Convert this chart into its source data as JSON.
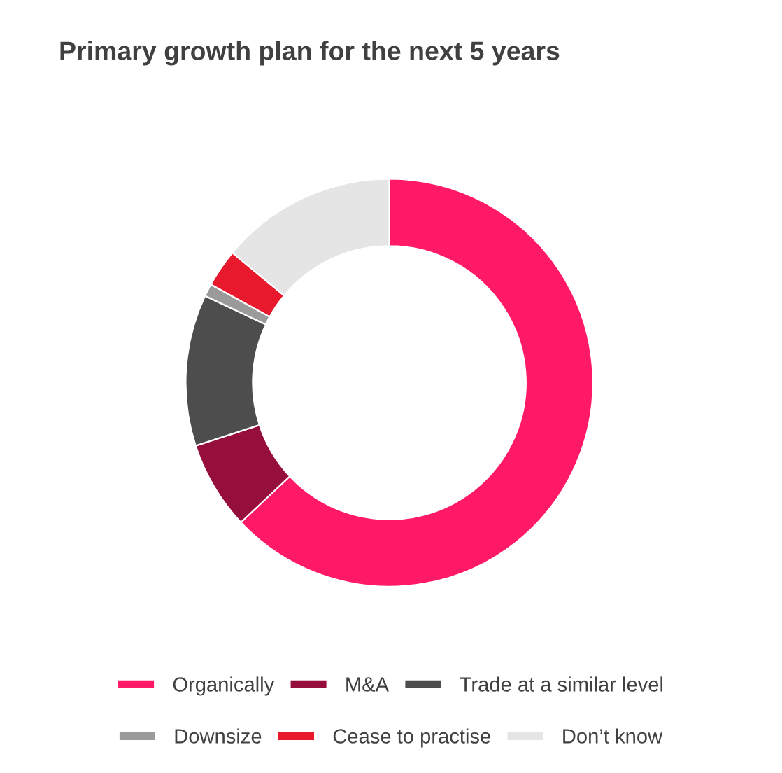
{
  "chart_data": {
    "type": "donut",
    "title": "Primary growth plan for the next 5 years",
    "categories": [
      "Organically",
      "M&A",
      "Trade at a similar level",
      "Downsize",
      "Cease to practise",
      "Don’t know"
    ],
    "values": [
      63,
      7,
      12,
      1,
      3,
      14
    ],
    "colors": [
      "#ff1966",
      "#960e3c",
      "#4d4d4d",
      "#9a9a9a",
      "#e8192c",
      "#e5e5e5"
    ],
    "legend": "bottom"
  }
}
